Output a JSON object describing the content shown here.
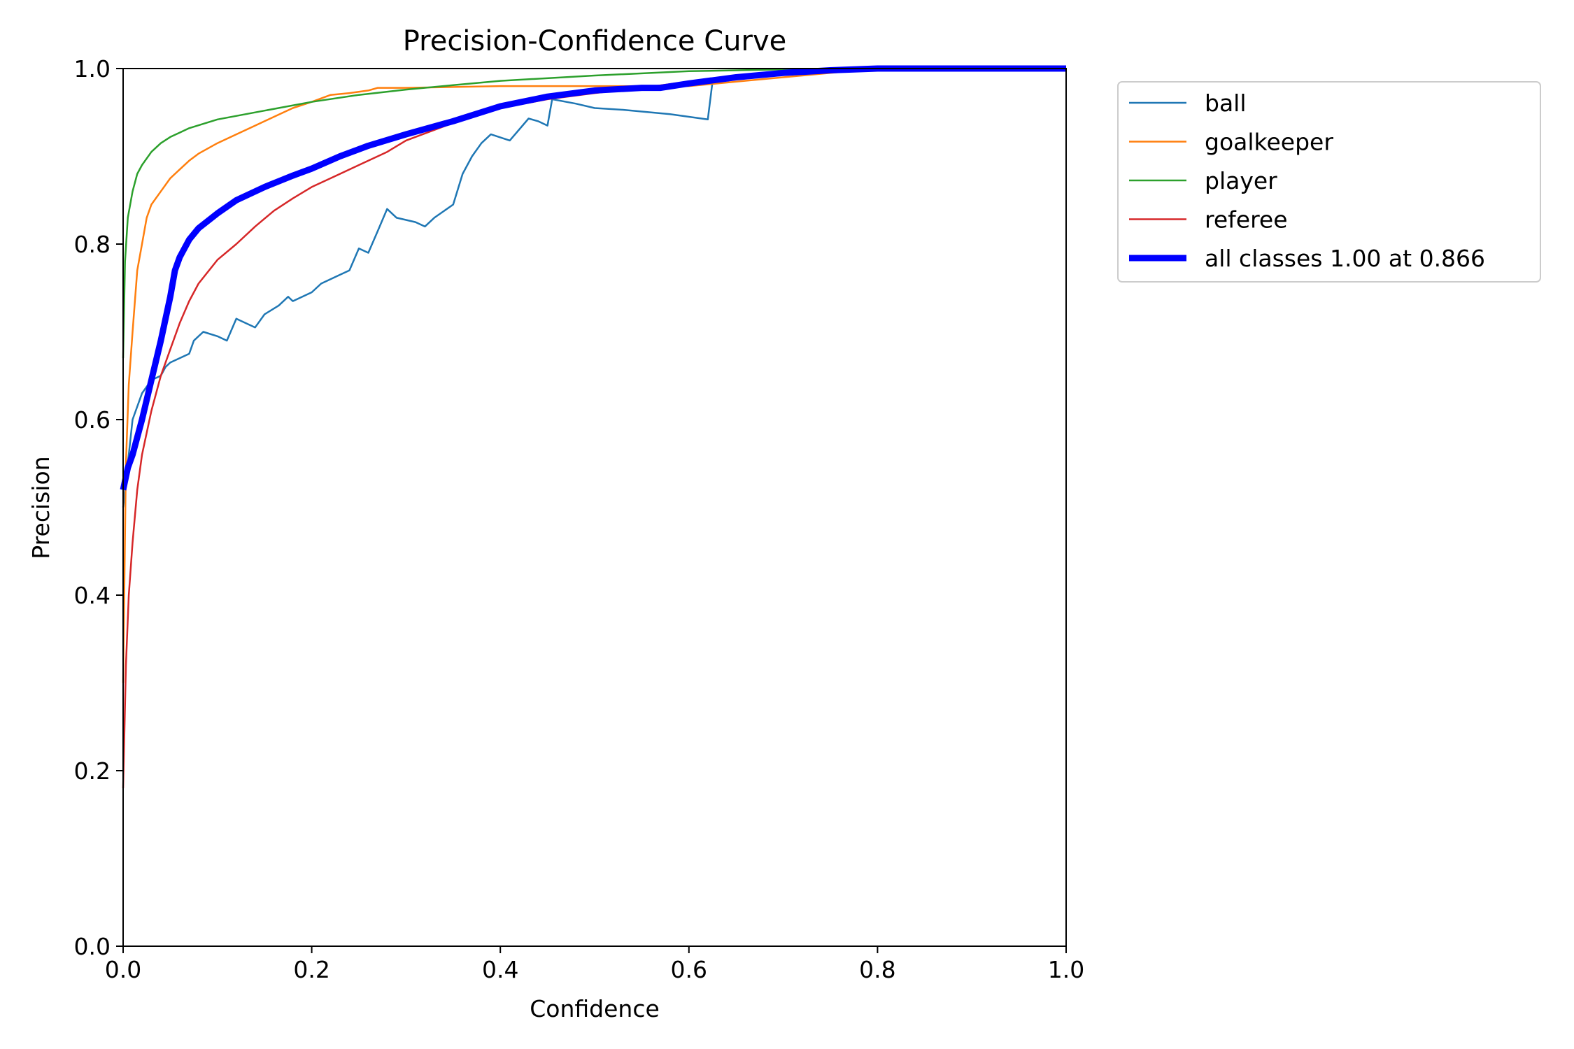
{
  "chart_data": {
    "type": "line",
    "title": "Precision-Confidence Curve",
    "xlabel": "Confidence",
    "ylabel": "Precision",
    "xlim": [
      0.0,
      1.0
    ],
    "ylim": [
      0.0,
      1.0
    ],
    "xticks": [
      "0.0",
      "0.2",
      "0.4",
      "0.6",
      "0.8",
      "1.0"
    ],
    "yticks": [
      "0.0",
      "0.2",
      "0.4",
      "0.6",
      "0.8",
      "1.0"
    ],
    "grid": false,
    "legend_position": "outside-right-top",
    "series": [
      {
        "name": "ball",
        "color": "#1f77b4",
        "width": "thin",
        "points": [
          [
            0.0,
            0.5
          ],
          [
            0.005,
            0.55
          ],
          [
            0.01,
            0.6
          ],
          [
            0.02,
            0.63
          ],
          [
            0.03,
            0.645
          ],
          [
            0.04,
            0.65
          ],
          [
            0.045,
            0.66
          ],
          [
            0.05,
            0.665
          ],
          [
            0.06,
            0.67
          ],
          [
            0.07,
            0.675
          ],
          [
            0.075,
            0.69
          ],
          [
            0.085,
            0.7
          ],
          [
            0.1,
            0.695
          ],
          [
            0.11,
            0.69
          ],
          [
            0.12,
            0.715
          ],
          [
            0.13,
            0.71
          ],
          [
            0.14,
            0.705
          ],
          [
            0.15,
            0.72
          ],
          [
            0.165,
            0.73
          ],
          [
            0.175,
            0.74
          ],
          [
            0.18,
            0.735
          ],
          [
            0.2,
            0.745
          ],
          [
            0.21,
            0.755
          ],
          [
            0.23,
            0.765
          ],
          [
            0.24,
            0.77
          ],
          [
            0.25,
            0.795
          ],
          [
            0.26,
            0.79
          ],
          [
            0.27,
            0.815
          ],
          [
            0.28,
            0.84
          ],
          [
            0.29,
            0.83
          ],
          [
            0.31,
            0.825
          ],
          [
            0.32,
            0.82
          ],
          [
            0.33,
            0.83
          ],
          [
            0.35,
            0.845
          ],
          [
            0.36,
            0.88
          ],
          [
            0.37,
            0.9
          ],
          [
            0.38,
            0.915
          ],
          [
            0.39,
            0.925
          ],
          [
            0.41,
            0.918
          ],
          [
            0.43,
            0.943
          ],
          [
            0.44,
            0.94
          ],
          [
            0.45,
            0.935
          ],
          [
            0.455,
            0.965
          ],
          [
            0.48,
            0.96
          ],
          [
            0.5,
            0.955
          ],
          [
            0.53,
            0.953
          ],
          [
            0.58,
            0.948
          ],
          [
            0.6,
            0.945
          ],
          [
            0.62,
            0.942
          ],
          [
            0.625,
            0.985
          ],
          [
            0.65,
            0.99
          ],
          [
            0.7,
            0.995
          ],
          [
            0.8,
            1.0
          ],
          [
            1.0,
            1.0
          ]
        ]
      },
      {
        "name": "goalkeeper",
        "color": "#ff7f0e",
        "width": "thin",
        "points": [
          [
            0.0,
            0.3
          ],
          [
            0.003,
            0.55
          ],
          [
            0.006,
            0.64
          ],
          [
            0.01,
            0.7
          ],
          [
            0.015,
            0.77
          ],
          [
            0.02,
            0.8
          ],
          [
            0.025,
            0.83
          ],
          [
            0.03,
            0.845
          ],
          [
            0.04,
            0.86
          ],
          [
            0.05,
            0.875
          ],
          [
            0.06,
            0.885
          ],
          [
            0.07,
            0.895
          ],
          [
            0.08,
            0.903
          ],
          [
            0.1,
            0.915
          ],
          [
            0.12,
            0.925
          ],
          [
            0.14,
            0.935
          ],
          [
            0.16,
            0.945
          ],
          [
            0.18,
            0.955
          ],
          [
            0.2,
            0.962
          ],
          [
            0.22,
            0.97
          ],
          [
            0.24,
            0.972
          ],
          [
            0.26,
            0.975
          ],
          [
            0.27,
            0.978
          ],
          [
            0.3,
            0.978
          ],
          [
            0.4,
            0.98
          ],
          [
            0.5,
            0.98
          ],
          [
            0.6,
            0.98
          ],
          [
            0.65,
            0.985
          ],
          [
            0.7,
            0.99
          ],
          [
            0.75,
            0.995
          ],
          [
            0.8,
            1.0
          ],
          [
            1.0,
            1.0
          ]
        ]
      },
      {
        "name": "player",
        "color": "#2ca02c",
        "width": "thin",
        "points": [
          [
            0.0,
            0.67
          ],
          [
            0.002,
            0.78
          ],
          [
            0.005,
            0.83
          ],
          [
            0.01,
            0.86
          ],
          [
            0.015,
            0.88
          ],
          [
            0.02,
            0.89
          ],
          [
            0.03,
            0.905
          ],
          [
            0.04,
            0.915
          ],
          [
            0.05,
            0.922
          ],
          [
            0.07,
            0.932
          ],
          [
            0.1,
            0.942
          ],
          [
            0.15,
            0.952
          ],
          [
            0.2,
            0.962
          ],
          [
            0.25,
            0.97
          ],
          [
            0.3,
            0.976
          ],
          [
            0.35,
            0.981
          ],
          [
            0.4,
            0.986
          ],
          [
            0.5,
            0.992
          ],
          [
            0.6,
            0.997
          ],
          [
            0.7,
            0.999
          ],
          [
            0.8,
            1.0
          ],
          [
            1.0,
            1.0
          ]
        ]
      },
      {
        "name": "referee",
        "color": "#d62728",
        "width": "thin",
        "points": [
          [
            0.0,
            0.18
          ],
          [
            0.003,
            0.32
          ],
          [
            0.006,
            0.4
          ],
          [
            0.01,
            0.46
          ],
          [
            0.015,
            0.52
          ],
          [
            0.02,
            0.56
          ],
          [
            0.03,
            0.61
          ],
          [
            0.04,
            0.65
          ],
          [
            0.05,
            0.68
          ],
          [
            0.06,
            0.71
          ],
          [
            0.07,
            0.735
          ],
          [
            0.08,
            0.755
          ],
          [
            0.1,
            0.782
          ],
          [
            0.12,
            0.8
          ],
          [
            0.14,
            0.82
          ],
          [
            0.16,
            0.838
          ],
          [
            0.18,
            0.852
          ],
          [
            0.2,
            0.865
          ],
          [
            0.22,
            0.875
          ],
          [
            0.25,
            0.89
          ],
          [
            0.28,
            0.905
          ],
          [
            0.3,
            0.918
          ],
          [
            0.33,
            0.93
          ],
          [
            0.36,
            0.942
          ],
          [
            0.4,
            0.955
          ],
          [
            0.45,
            0.965
          ],
          [
            0.5,
            0.972
          ],
          [
            0.55,
            0.978
          ],
          [
            0.6,
            0.985
          ],
          [
            0.65,
            0.99
          ],
          [
            0.7,
            0.995
          ],
          [
            0.8,
            1.0
          ],
          [
            1.0,
            1.0
          ]
        ]
      },
      {
        "name": "all classes 1.00 at 0.866",
        "color": "#0000ff",
        "width": "thick",
        "points": [
          [
            0.0,
            0.52
          ],
          [
            0.005,
            0.545
          ],
          [
            0.01,
            0.56
          ],
          [
            0.02,
            0.6
          ],
          [
            0.03,
            0.645
          ],
          [
            0.04,
            0.69
          ],
          [
            0.05,
            0.74
          ],
          [
            0.055,
            0.77
          ],
          [
            0.06,
            0.785
          ],
          [
            0.07,
            0.805
          ],
          [
            0.08,
            0.818
          ],
          [
            0.1,
            0.835
          ],
          [
            0.12,
            0.85
          ],
          [
            0.15,
            0.865
          ],
          [
            0.18,
            0.878
          ],
          [
            0.2,
            0.886
          ],
          [
            0.23,
            0.9
          ],
          [
            0.26,
            0.912
          ],
          [
            0.3,
            0.925
          ],
          [
            0.35,
            0.94
          ],
          [
            0.4,
            0.957
          ],
          [
            0.45,
            0.968
          ],
          [
            0.5,
            0.975
          ],
          [
            0.55,
            0.978
          ],
          [
            0.57,
            0.978
          ],
          [
            0.6,
            0.983
          ],
          [
            0.65,
            0.99
          ],
          [
            0.7,
            0.995
          ],
          [
            0.75,
            0.998
          ],
          [
            0.8,
            1.0
          ],
          [
            1.0,
            1.0
          ]
        ]
      }
    ]
  }
}
